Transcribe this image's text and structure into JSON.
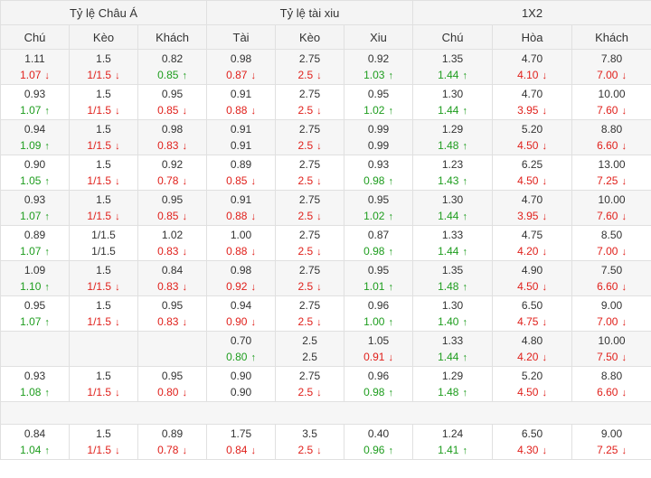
{
  "groups": [
    {
      "label": "Tỷ lệ Châu Á"
    },
    {
      "label": "Tỷ lệ tài xiu"
    },
    {
      "label": "1X2"
    }
  ],
  "columns": [
    "Chú",
    "Kèo",
    "Khách",
    "Tài",
    "Kèo",
    "Xiu",
    "Chú",
    "Hòa",
    "Khách"
  ],
  "arrow_glyphs": {
    "up": "↑",
    "down": "↓"
  },
  "colors": {
    "green": "#1e9d1e",
    "red": "#e0201b",
    "text": "#333333",
    "header_bg": "#f4f4f4",
    "row_alt_bg": "#f6f6f6"
  },
  "rows": [
    {
      "type": "data",
      "shade": true,
      "cells": [
        {
          "open": "1.11",
          "cur": "1.07",
          "dir": "down"
        },
        {
          "open": "1.5",
          "cur": "1/1.5",
          "dir": "down"
        },
        {
          "open": "0.82",
          "cur": "0.85",
          "dir": "up"
        },
        {
          "open": "0.98",
          "cur": "0.87",
          "dir": "down"
        },
        {
          "open": "2.75",
          "cur": "2.5",
          "dir": "down"
        },
        {
          "open": "0.92",
          "cur": "1.03",
          "dir": "up"
        },
        {
          "open": "1.35",
          "cur": "1.44",
          "dir": "up"
        },
        {
          "open": "4.70",
          "cur": "4.10",
          "dir": "down"
        },
        {
          "open": "7.80",
          "cur": "7.00",
          "dir": "down"
        }
      ]
    },
    {
      "type": "data",
      "shade": false,
      "cells": [
        {
          "open": "0.93",
          "cur": "1.07",
          "dir": "up"
        },
        {
          "open": "1.5",
          "cur": "1/1.5",
          "dir": "down"
        },
        {
          "open": "0.95",
          "cur": "0.85",
          "dir": "down"
        },
        {
          "open": "0.91",
          "cur": "0.88",
          "dir": "down"
        },
        {
          "open": "2.75",
          "cur": "2.5",
          "dir": "down"
        },
        {
          "open": "0.95",
          "cur": "1.02",
          "dir": "up"
        },
        {
          "open": "1.30",
          "cur": "1.44",
          "dir": "up"
        },
        {
          "open": "4.70",
          "cur": "3.95",
          "dir": "down"
        },
        {
          "open": "10.00",
          "cur": "7.60",
          "dir": "down"
        }
      ]
    },
    {
      "type": "data",
      "shade": true,
      "cells": [
        {
          "open": "0.94",
          "cur": "1.09",
          "dir": "up"
        },
        {
          "open": "1.5",
          "cur": "1/1.5",
          "dir": "down"
        },
        {
          "open": "0.98",
          "cur": "0.83",
          "dir": "down"
        },
        {
          "open": "0.91",
          "cur": "0.91",
          "dir": "none"
        },
        {
          "open": "2.75",
          "cur": "2.5",
          "dir": "down"
        },
        {
          "open": "0.99",
          "cur": "0.99",
          "dir": "none"
        },
        {
          "open": "1.29",
          "cur": "1.48",
          "dir": "up"
        },
        {
          "open": "5.20",
          "cur": "4.50",
          "dir": "down"
        },
        {
          "open": "8.80",
          "cur": "6.60",
          "dir": "down"
        }
      ]
    },
    {
      "type": "data",
      "shade": false,
      "cells": [
        {
          "open": "0.90",
          "cur": "1.05",
          "dir": "up"
        },
        {
          "open": "1.5",
          "cur": "1/1.5",
          "dir": "down"
        },
        {
          "open": "0.92",
          "cur": "0.78",
          "dir": "down"
        },
        {
          "open": "0.89",
          "cur": "0.85",
          "dir": "down"
        },
        {
          "open": "2.75",
          "cur": "2.5",
          "dir": "down"
        },
        {
          "open": "0.93",
          "cur": "0.98",
          "dir": "up"
        },
        {
          "open": "1.23",
          "cur": "1.43",
          "dir": "up"
        },
        {
          "open": "6.25",
          "cur": "4.50",
          "dir": "down"
        },
        {
          "open": "13.00",
          "cur": "7.25",
          "dir": "down"
        }
      ]
    },
    {
      "type": "data",
      "shade": true,
      "cells": [
        {
          "open": "0.93",
          "cur": "1.07",
          "dir": "up"
        },
        {
          "open": "1.5",
          "cur": "1/1.5",
          "dir": "down"
        },
        {
          "open": "0.95",
          "cur": "0.85",
          "dir": "down"
        },
        {
          "open": "0.91",
          "cur": "0.88",
          "dir": "down"
        },
        {
          "open": "2.75",
          "cur": "2.5",
          "dir": "down"
        },
        {
          "open": "0.95",
          "cur": "1.02",
          "dir": "up"
        },
        {
          "open": "1.30",
          "cur": "1.44",
          "dir": "up"
        },
        {
          "open": "4.70",
          "cur": "3.95",
          "dir": "down"
        },
        {
          "open": "10.00",
          "cur": "7.60",
          "dir": "down"
        }
      ]
    },
    {
      "type": "data",
      "shade": false,
      "cells": [
        {
          "open": "0.89",
          "cur": "1.07",
          "dir": "up"
        },
        {
          "open": "1/1.5",
          "cur": "1/1.5",
          "dir": "none"
        },
        {
          "open": "1.02",
          "cur": "0.83",
          "dir": "down"
        },
        {
          "open": "1.00",
          "cur": "0.88",
          "dir": "down"
        },
        {
          "open": "2.75",
          "cur": "2.5",
          "dir": "down"
        },
        {
          "open": "0.87",
          "cur": "0.98",
          "dir": "up"
        },
        {
          "open": "1.33",
          "cur": "1.44",
          "dir": "up"
        },
        {
          "open": "4.75",
          "cur": "4.20",
          "dir": "down"
        },
        {
          "open": "8.50",
          "cur": "7.00",
          "dir": "down"
        }
      ]
    },
    {
      "type": "data",
      "shade": true,
      "cells": [
        {
          "open": "1.09",
          "cur": "1.10",
          "dir": "up"
        },
        {
          "open": "1.5",
          "cur": "1/1.5",
          "dir": "down"
        },
        {
          "open": "0.84",
          "cur": "0.83",
          "dir": "down"
        },
        {
          "open": "0.98",
          "cur": "0.92",
          "dir": "down"
        },
        {
          "open": "2.75",
          "cur": "2.5",
          "dir": "down"
        },
        {
          "open": "0.95",
          "cur": "1.01",
          "dir": "up"
        },
        {
          "open": "1.35",
          "cur": "1.48",
          "dir": "up"
        },
        {
          "open": "4.90",
          "cur": "4.50",
          "dir": "down"
        },
        {
          "open": "7.50",
          "cur": "6.60",
          "dir": "down"
        }
      ]
    },
    {
      "type": "data",
      "shade": false,
      "cells": [
        {
          "open": "0.95",
          "cur": "1.07",
          "dir": "up"
        },
        {
          "open": "1.5",
          "cur": "1/1.5",
          "dir": "down"
        },
        {
          "open": "0.95",
          "cur": "0.83",
          "dir": "down"
        },
        {
          "open": "0.94",
          "cur": "0.90",
          "dir": "down"
        },
        {
          "open": "2.75",
          "cur": "2.5",
          "dir": "down"
        },
        {
          "open": "0.96",
          "cur": "1.00",
          "dir": "up"
        },
        {
          "open": "1.30",
          "cur": "1.40",
          "dir": "up"
        },
        {
          "open": "6.50",
          "cur": "4.75",
          "dir": "down"
        },
        {
          "open": "9.00",
          "cur": "7.00",
          "dir": "down"
        }
      ]
    },
    {
      "type": "data",
      "shade": true,
      "cells": [
        {
          "open": "",
          "cur": "",
          "dir": "none"
        },
        {
          "open": "",
          "cur": "",
          "dir": "none"
        },
        {
          "open": "",
          "cur": "",
          "dir": "none"
        },
        {
          "open": "0.70",
          "cur": "0.80",
          "dir": "up"
        },
        {
          "open": "2.5",
          "cur": "2.5",
          "dir": "none"
        },
        {
          "open": "1.05",
          "cur": "0.91",
          "dir": "down"
        },
        {
          "open": "1.33",
          "cur": "1.44",
          "dir": "up"
        },
        {
          "open": "4.80",
          "cur": "4.20",
          "dir": "down"
        },
        {
          "open": "10.00",
          "cur": "7.50",
          "dir": "down"
        }
      ]
    },
    {
      "type": "data",
      "shade": false,
      "cells": [
        {
          "open": "0.93",
          "cur": "1.08",
          "dir": "up"
        },
        {
          "open": "1.5",
          "cur": "1/1.5",
          "dir": "down"
        },
        {
          "open": "0.95",
          "cur": "0.80",
          "dir": "down"
        },
        {
          "open": "0.90",
          "cur": "0.90",
          "dir": "none"
        },
        {
          "open": "2.75",
          "cur": "2.5",
          "dir": "down"
        },
        {
          "open": "0.96",
          "cur": "0.98",
          "dir": "up"
        },
        {
          "open": "1.29",
          "cur": "1.48",
          "dir": "up"
        },
        {
          "open": "5.20",
          "cur": "4.50",
          "dir": "down"
        },
        {
          "open": "8.80",
          "cur": "6.60",
          "dir": "down"
        }
      ]
    },
    {
      "type": "spacer"
    },
    {
      "type": "data",
      "shade": false,
      "cells": [
        {
          "open": "0.84",
          "cur": "1.04",
          "dir": "up"
        },
        {
          "open": "1.5",
          "cur": "1/1.5",
          "dir": "down"
        },
        {
          "open": "0.89",
          "cur": "0.78",
          "dir": "down"
        },
        {
          "open": "1.75",
          "cur": "0.84",
          "dir": "down"
        },
        {
          "open": "3.5",
          "cur": "2.5",
          "dir": "down"
        },
        {
          "open": "0.40",
          "cur": "0.96",
          "dir": "up"
        },
        {
          "open": "1.24",
          "cur": "1.41",
          "dir": "up"
        },
        {
          "open": "6.50",
          "cur": "4.30",
          "dir": "down"
        },
        {
          "open": "9.00",
          "cur": "7.25",
          "dir": "down"
        }
      ]
    }
  ]
}
